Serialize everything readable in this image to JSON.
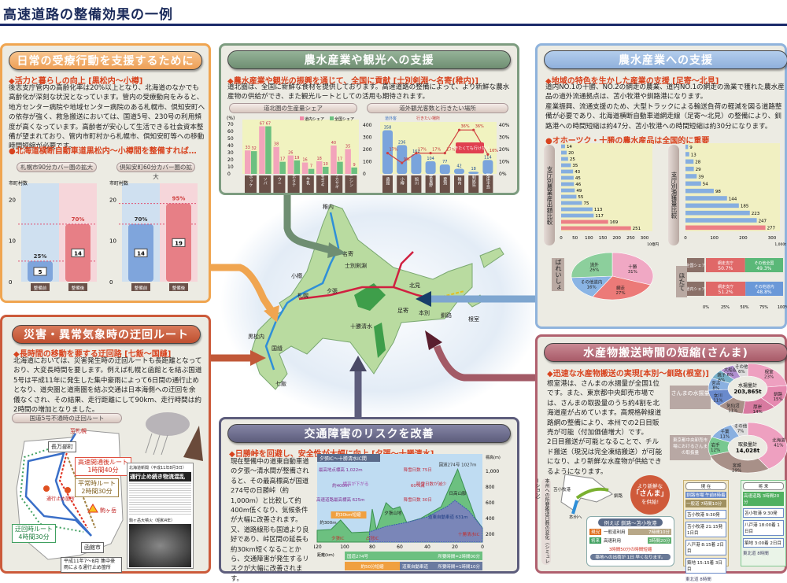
{
  "title": "高速道路の整備効果の一例",
  "colors": {
    "orange": "#f0a550",
    "green": "#7d9c80",
    "blue": "#8fb3dc",
    "red": "#cc5a3a",
    "slate": "#5d5d7c",
    "maroon": "#b0606e",
    "accent_text": "#d8431e"
  },
  "panel_medical": {
    "header": "日常の受療行動を支援するために",
    "sub1": "◆活力と暮らしの向上 [黒松内～小樽]",
    "body": "後志支庁管内の高齢化率は20%以上となり、北海道のなかでも高齢化が深刻な状況となっています。管内の受療動向をみると、地方センター病院や地域センター病院のある札幌市、倶知安町への依存が強く、救急搬送においては、国道5号、230号の利用頻度が高くなっています。高齢者が安心して生活できる社会資本整備が望まれており、管内市町村から札幌市、倶知安町等への移動時間短縮が必要です。",
    "sub2": "●北海道横断自動車道黒松内～小樽間を整備すれば…",
    "charts": [
      {
        "title": "札幌市90分カバー圏の拡大",
        "ylabel": "市町村数",
        "yticks": [
          0,
          10,
          20
        ],
        "ymax": 22,
        "categories": [
          "整備前",
          "整備後"
        ],
        "values": [
          5,
          14
        ],
        "percents": [
          "25%",
          "70%"
        ]
      },
      {
        "title": "倶知安町60分カバー圏の拡大",
        "ylabel": "市町村数",
        "yticks": [
          0,
          10,
          20
        ],
        "ymax": 22,
        "categories": [
          "整備前",
          "整備後"
        ],
        "values": [
          14,
          19
        ],
        "percents": [
          "70%",
          "95%"
        ]
      }
    ]
  },
  "panel_agri_tourism": {
    "header": "農水産業や観光への支援",
    "sub1": "◆農水産業や観光の振興を通じて、全国に貢献 [士別剣淵～名寄(稚内)]",
    "body": "道北圏は、全国に新鮮な食材を提供しております。高速道路の整備によって、より新鮮な農水産物の供給ができ、また観光ルートとしての活用も期待されます。",
    "chart_share": {
      "title": "道北圏の生産量シェア",
      "unit": "(%)",
      "yticks": [
        0,
        10,
        20,
        30,
        40,
        50,
        60,
        70
      ],
      "ymax": 72,
      "legend": [
        "道内シェア",
        "全国シェア"
      ],
      "categories": [
        "ホッケ",
        "ソバ",
        "ウニ",
        "ホタテ",
        "牛乳",
        "玉ネギ",
        "ワカサギ",
        "ニシン"
      ],
      "series": [
        {
          "name": "道内シェア",
          "values": [
            33,
            67,
            38,
            26,
            16,
            18,
            40,
            35
          ]
        },
        {
          "name": "全国シェア",
          "values": [
            32,
            67,
            17,
            19,
            7,
            10,
            17,
            9
          ]
        }
      ]
    },
    "chart_tourism": {
      "title": "道外観光客数と行きたい場所",
      "legend": [
        "道外客",
        "行きたい場所"
      ],
      "yticks": [
        0,
        100,
        200,
        300,
        400
      ],
      "ymax": 400,
      "y2ticks": [
        "0%",
        "10%",
        "20%",
        "30%",
        "40%"
      ],
      "y2max": 40,
      "categories": [
        "函館",
        "小樽",
        "旭川",
        "富良野",
        "登別",
        "稚内",
        "利尻島",
        "知床半島"
      ],
      "bars": [
        358,
        236,
        162,
        104,
        77,
        42,
        18,
        114
      ],
      "line": [
        17,
        9,
        17,
        17,
        17,
        36,
        36,
        16
      ],
      "note": "行きたくても行けない"
    }
  },
  "panel_agri_east": {
    "header": "農水産業への支援",
    "sub1": "◆地域の特色を生かした産業の支援 [足寄～北見]",
    "body": "道内NO.1の十勝、NO.2の網走の農業、道内NO.1の網走の漁業で獲れた農水産品の道外流通拠点は、苫小牧港や釧路港になります。\n産業振興、流通支援のため、大型トラックによる輸送負荷の軽減を図る道路整備が必要であり、北海道横断自動車道網走線（足寄～北見）の整備により、釧路港への時間短縮は約47分、苫小牧港への時間短縮は約30分になります。",
    "sub2": "●オホーツク・十勝の農水産品は全国的に重要",
    "chart_agri": {
      "label": "支庁別農業産出額比較",
      "unit": "10億円",
      "xticks": [
        0,
        50,
        100,
        150,
        200,
        250,
        300
      ],
      "xmax": 300,
      "values": [
        14,
        20,
        25,
        35,
        43,
        45,
        46,
        49,
        55,
        75,
        113,
        117,
        169,
        251
      ]
    },
    "chart_fish": {
      "label": "支庁別漁獲量比較",
      "unit": "1,000t",
      "xticks": [
        0,
        100,
        200,
        300
      ],
      "xmax": 300,
      "values": [
        9,
        13,
        28,
        29,
        39,
        54,
        98,
        144,
        185,
        223,
        247,
        277
      ]
    },
    "potato": {
      "label": "ばれいしょ",
      "slices": [
        {
          "name": "十勝",
          "value": 31
        },
        {
          "name": "網走",
          "value": 27
        },
        {
          "name": "その他道内",
          "value": 16
        },
        {
          "name": "道外",
          "value": 26
        }
      ]
    },
    "scallop": {
      "label": "ほたて",
      "rows": [
        {
          "name": "全国シェア",
          "a": "網走支庁",
          "a_val": 50.7,
          "b": "その他全国",
          "b_val": 49.3
        },
        {
          "name": "道内シェア",
          "a": "網走支庁",
          "a_val": 51.2,
          "b": "その他道内",
          "b_val": 48.8
        }
      ],
      "xticks": [
        "0%",
        "25%",
        "50%",
        "75%",
        "100%"
      ]
    }
  },
  "panel_detour": {
    "header": "災害・異常気象時の迂回ルート",
    "sub1": "◆長時間の移動を要する迂回路 [七飯～国縫]",
    "body": "北海道においては、災害発生時の迂回ルートも長距離となっており、大変長時間を要します。例えば札幌と函館とを結ぶ国道5号は平成11年に発生した集中豪雨によって6日間の通行止めとなり、道央圏と道南圏を結ぶ交通は日本海側への迂回を余儀なくされ、その結果、走行距離にして90km、走行時間は約2時間の増加となりました。",
    "map_title": "国道5号不通時の迂回ルート",
    "places": [
      "至札幌",
      "長万部町",
      "函館市",
      "駒ヶ岳",
      "通行止め箇所"
    ],
    "routes": [
      {
        "name": "高速開通後ルート",
        "time": "1時間40分"
      },
      {
        "name": "平常時ルート",
        "time": "2時間30分"
      },
      {
        "name": "迂回時ルート",
        "time": "4時間30分"
      }
    ],
    "legend": "平成11年7～8月 集中豪雨による通行止め箇所",
    "newspaper": {
      "source": "北海道新聞（平成11年8月3日）",
      "headline": "通行止め続き物流混乱",
      "caption": "駒ヶ岳大噴火（昭和4年）"
    }
  },
  "panel_traffic": {
    "header": "交通障害のリスクを改善",
    "sub1": "◆日勝峠を回避し、安全性が大幅に向上 [夕張～十勝清水]",
    "body": "現在整備中の道東自動車道の夕張～清水間が整備されると、その最高標高が国道274号の日勝峠（約1,000m）と比較して約400m低くなり、気候条件が大幅に改善されます。又、道路線形も国道より良好であり、峠区間の延長も約30km短くなることから、交通障害が発生するリスクが大幅に改善されます。",
    "chart": {
      "title": "夕張IC～十勝清水IC間",
      "ylabel": "標高(m)",
      "yticks": [
        200,
        400,
        600,
        800,
        1000
      ],
      "xticks": [
        120,
        100,
        80,
        60,
        40,
        20,
        0
      ],
      "xlabel": "距離(km)",
      "labels": {
        "peak": "国道274号",
        "peak_val": "1027m",
        "mountain": "日高山脈",
        "yubari_mtn": "夕張山地",
        "expressway": "道東自動車道",
        "exp_peak": "631m",
        "high1": "最高地点標高 1,022m",
        "low1": "高速道路最高標高 625m",
        "diff1": "約400m",
        "caution": "標高が下がる",
        "winter1": "降雪日数 75日",
        "winter2": "降雪日数 30日",
        "ratio": "60%減",
        "reduce": "降雪日数が減少",
        "short": "約30km短縮",
        "yubari_ic": "夕張IC",
        "shimizu_ic": "十勝清水IC",
        "ic2": "占冠IC",
        "start_alt": "約300m"
      },
      "route_bars": [
        {
          "name": "国道274号",
          "time": "所要時間=2時間00分"
        },
        {
          "name": "道東自動車道",
          "time": "所要時間=1時間10分"
        }
      ],
      "saving": "約50分短縮"
    }
  },
  "panel_fish": {
    "header": "水産物搬送時間の短縮(さんま)",
    "sub1": "◆迅速な水産物搬送の実現[本別～釧路(根室)]",
    "body": "根室港は、さんまの水揚量が全国1位です。また、東京都中央卸売市場では、さんまの取扱量のうち約4割を北海道産が占めています。高規格幹線道路網の整備により、本州での2日目販売が可能（付加価値増大）です。\n2日目搬送が可能となることで、チルド搬送（現況は完全凍結搬送）が可能になり、より新鮮な水産物が供給できるようになります。",
    "donut1": {
      "label": "さんまの水揚量",
      "total_label": "水揚量計",
      "total": "203,865t",
      "slices": [
        {
          "name": "根室",
          "value": 23
        },
        {
          "name": "釧路",
          "value": 15
        },
        {
          "name": "厚岸",
          "value": 14
        },
        {
          "name": "気仙沼",
          "value": 11
        },
        {
          "name": "女川",
          "value": 11
        },
        {
          "name": "宮古",
          "value": 8
        },
        {
          "name": "銚子",
          "value": 6
        },
        {
          "name": "大船渡",
          "value": 6
        },
        {
          "name": "その他",
          "value": 6
        }
      ]
    },
    "donut2": {
      "label": "東京都中央卸売市場におけるさんまの取扱量",
      "total_label": "取扱量計",
      "total": "14,028t",
      "slices": [
        {
          "name": "北海道",
          "value": 41
        },
        {
          "name": "宮城",
          "value": 29
        },
        {
          "name": "岩手",
          "value": 12
        },
        {
          "name": "千葉",
          "value": 11
        },
        {
          "name": "その他",
          "value": 7
        }
      ]
    },
    "flow_label": "本州への所要搬送日数の変化（シミュレーション）",
    "map_places": [
      "苫小牧港",
      "釧路",
      "本州へ"
    ],
    "bubble": [
      "より新鮮な",
      "「さんま」",
      "を供給!"
    ],
    "example": {
      "title": "例えば 釧路～苫小牧港",
      "now": "現況",
      "now_route": "一般道利用",
      "now_time": "7時間10分",
      "future": "将来",
      "future_route": "高速利用",
      "future_time": "3時間20分",
      "saving": "3時間50分の時間短縮",
      "result": "築地への出荷が 1日 早くなります。"
    },
    "table_now": {
      "title": "現 在",
      "top": "釧路市場 午前8時着",
      "route": "一般道",
      "route_time": "7時間10分",
      "rows": [
        {
          "place": "苫小牧港",
          "time": "9:30発"
        },
        {
          "place": "苫小牧港",
          "time": "21:15発",
          "note": "1日目"
        },
        {
          "place": "八戸港",
          "time": "8:15着",
          "note": "2日目"
        },
        {
          "place": "築地",
          "time": "15:15着",
          "note": "3日目"
        }
      ],
      "ferry": "東北道 8時間"
    },
    "table_future": {
      "title": "将 来",
      "route": "高速道路",
      "route_time": "3時間20分",
      "rows": [
        {
          "place": "苫小牧港",
          "time": "9:30発"
        },
        {
          "place": "八戸港",
          "time": "18:00着",
          "note": "1日目"
        },
        {
          "place": "築地",
          "time": "3:00着",
          "note": "2日目"
        }
      ],
      "ferry": "東北道 8時間",
      "badge": "出荷"
    }
  },
  "map": {
    "places": [
      "稚内",
      "名寄",
      "士別剣淵",
      "北見",
      "小樽",
      "札幌",
      "夕張",
      "足寄",
      "本別",
      "釧路",
      "根室",
      "十勝清水",
      "黒松内",
      "国縫",
      "七飯"
    ]
  }
}
